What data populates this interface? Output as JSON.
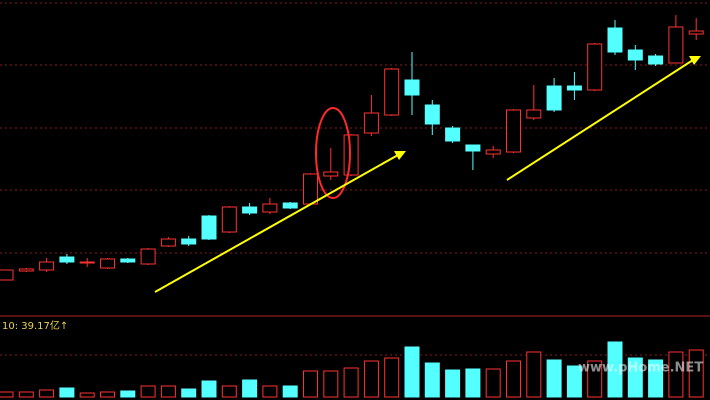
{
  "chart_data": {
    "type": "candlestick",
    "up_color": "#ff3232",
    "down_color": "#54ffff",
    "ylim": [
      5,
      320
    ],
    "volume_ylim": [
      0,
      80
    ],
    "open": [
      40,
      49,
      50,
      63,
      58,
      52,
      61,
      56,
      74,
      81,
      104,
      88,
      113,
      108,
      117,
      116,
      144,
      145,
      187,
      205,
      240,
      215,
      192,
      175,
      166,
      168,
      202,
      234,
      234,
      230,
      292,
      270,
      264,
      257,
      286
    ],
    "high": [
      50,
      52,
      62,
      66,
      62,
      62,
      62,
      72,
      83,
      84,
      105,
      114,
      117,
      122,
      118,
      147,
      172,
      186,
      225,
      252,
      268,
      220,
      194,
      175,
      174,
      211,
      235,
      242,
      248,
      277,
      300,
      275,
      266,
      305,
      302
    ],
    "low": [
      40,
      48,
      48,
      56,
      53,
      51,
      57,
      55,
      73,
      74,
      80,
      87,
      105,
      106,
      111,
      115,
      140,
      144,
      184,
      204,
      205,
      185,
      177,
      150,
      162,
      167,
      200,
      208,
      220,
      229,
      265,
      250,
      254,
      257,
      280
    ],
    "close": [
      50,
      51,
      58,
      58,
      58,
      61,
      58,
      71,
      81,
      76,
      81,
      113,
      107,
      116,
      112,
      146,
      148,
      185,
      207,
      251,
      225,
      196,
      179,
      169,
      170,
      210,
      210,
      210,
      230,
      276,
      268,
      260,
      256,
      293,
      289
    ],
    "volume": [
      5,
      5,
      7,
      9,
      4,
      5,
      6,
      11,
      11,
      8,
      16,
      11,
      17,
      11,
      11,
      26,
      26,
      29,
      36,
      39,
      50,
      34,
      27,
      28,
      28,
      36,
      45,
      37,
      31,
      36,
      55,
      39,
      37,
      45,
      47
    ],
    "volume_label": "10: 39.17亿↑",
    "watermark": "www.pHome.NET"
  }
}
